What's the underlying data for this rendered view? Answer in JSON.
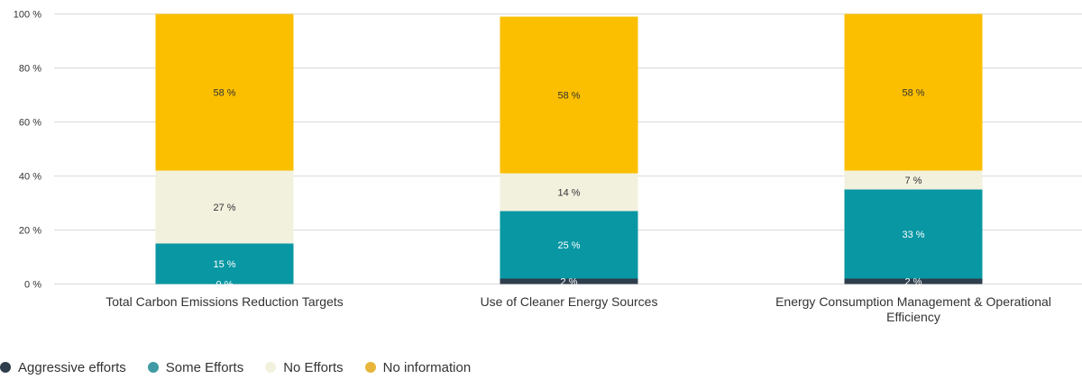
{
  "chart_data": {
    "type": "bar",
    "stacked": true,
    "categories": [
      "Total Carbon Emissions Reduction Targets",
      "Use of Cleaner Energy Sources",
      "Energy Consumption Management & Operational Efficiency"
    ],
    "series": [
      {
        "name": "Aggressive efforts",
        "color": "#2f3e4c",
        "values": [
          0,
          2,
          2
        ],
        "labels": [
          "0 %",
          "2 %",
          "2 %"
        ]
      },
      {
        "name": "Some Efforts",
        "color": "#0897a3",
        "values": [
          15,
          25,
          33
        ],
        "labels": [
          "15 %",
          "25 %",
          "33 %"
        ]
      },
      {
        "name": "No Efforts",
        "color": "#f2f1de",
        "values": [
          27,
          14,
          7
        ],
        "labels": [
          "27 %",
          "14 %",
          "7 %"
        ]
      },
      {
        "name": "No information",
        "color": "#fbbf00",
        "values": [
          58,
          58,
          58
        ],
        "labels": [
          "58 %",
          "58 %",
          "58 %"
        ]
      }
    ],
    "yticks": [
      "0 %",
      "20 %",
      "40 %",
      "60 %",
      "80 %",
      "100 %"
    ],
    "ylim": [
      0,
      100
    ],
    "grid": true,
    "legend_position": "bottom-left",
    "title": "",
    "xlabel": "",
    "ylabel": ""
  },
  "legend": {
    "items": [
      {
        "label": "Aggressive efforts",
        "color": "#2f3e4c"
      },
      {
        "label": "Some Efforts",
        "color": "#0897a3"
      },
      {
        "label": "No Efforts",
        "color": "#f2f1de"
      },
      {
        "label": "No information",
        "color": "#fbbf00"
      }
    ]
  }
}
